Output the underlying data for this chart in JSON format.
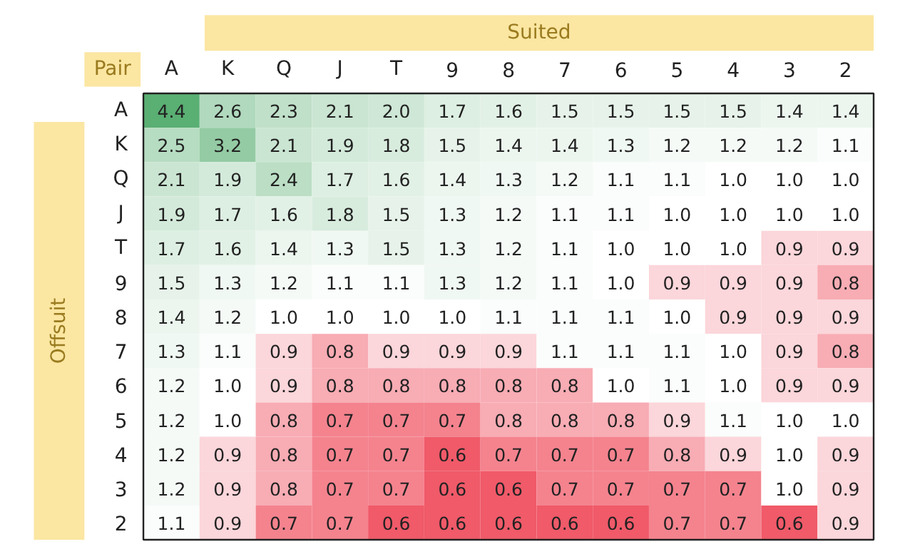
{
  "chart_data": {
    "type": "heatmap",
    "xlabel": "Suited",
    "ylabel": "Offsuit",
    "annotations": [
      "Pair"
    ],
    "data_labels": true,
    "categories": [
      "A",
      "K",
      "Q",
      "J",
      "T",
      "9",
      "8",
      "7",
      "6",
      "5",
      "4",
      "3",
      "2"
    ],
    "y_categories": [
      "A",
      "K",
      "Q",
      "J",
      "T",
      "9",
      "8",
      "7",
      "6",
      "5",
      "4",
      "3",
      "2"
    ],
    "cells": [
      [
        4.4,
        2.6,
        2.3,
        2.1,
        2.0,
        1.7,
        1.6,
        1.5,
        1.5,
        1.5,
        1.5,
        1.4,
        1.4
      ],
      [
        2.5,
        3.2,
        2.1,
        1.9,
        1.8,
        1.5,
        1.4,
        1.4,
        1.3,
        1.2,
        1.2,
        1.2,
        1.1
      ],
      [
        2.1,
        1.9,
        2.4,
        1.7,
        1.6,
        1.4,
        1.3,
        1.2,
        1.1,
        1.1,
        1.0,
        1.0,
        1.0
      ],
      [
        1.9,
        1.7,
        1.6,
        1.8,
        1.5,
        1.3,
        1.2,
        1.1,
        1.1,
        1.0,
        1.0,
        1.0,
        1.0
      ],
      [
        1.7,
        1.6,
        1.4,
        1.3,
        1.5,
        1.3,
        1.2,
        1.1,
        1.0,
        1.0,
        1.0,
        0.9,
        0.9
      ],
      [
        1.5,
        1.3,
        1.2,
        1.1,
        1.1,
        1.3,
        1.2,
        1.1,
        1.0,
        0.9,
        0.9,
        0.9,
        0.8
      ],
      [
        1.4,
        1.2,
        1.0,
        1.0,
        1.0,
        1.0,
        1.1,
        1.1,
        1.1,
        1.0,
        0.9,
        0.9,
        0.9
      ],
      [
        1.3,
        1.1,
        0.9,
        0.8,
        0.9,
        0.9,
        0.9,
        1.1,
        1.1,
        1.1,
        1.0,
        0.9,
        0.8
      ],
      [
        1.2,
        1.0,
        0.9,
        0.8,
        0.8,
        0.8,
        0.8,
        0.8,
        1.0,
        1.1,
        1.0,
        0.9,
        0.9
      ],
      [
        1.2,
        1.0,
        0.8,
        0.7,
        0.7,
        0.7,
        0.8,
        0.8,
        0.8,
        0.9,
        1.1,
        1.0,
        1.0
      ],
      [
        1.2,
        0.9,
        0.8,
        0.7,
        0.7,
        0.6,
        0.7,
        0.7,
        0.7,
        0.8,
        0.9,
        1.0,
        0.9
      ],
      [
        1.2,
        0.9,
        0.8,
        0.7,
        0.7,
        0.6,
        0.6,
        0.7,
        0.7,
        0.7,
        0.7,
        1.0,
        0.9
      ],
      [
        1.1,
        0.9,
        0.7,
        0.7,
        0.6,
        0.6,
        0.6,
        0.6,
        0.6,
        0.7,
        0.7,
        0.6,
        0.9
      ]
    ],
    "cell_labels": [
      [
        "4.4",
        "2.6",
        "2.3",
        "2.1",
        "2.0",
        "1.7",
        "1.6",
        "1.5",
        "1.5",
        "1.5",
        "1.5",
        "1.4",
        "1.4"
      ],
      [
        "2.5",
        "3.2",
        "2.1",
        "1.9",
        "1.8",
        "1.5",
        "1.4",
        "1.4",
        "1.3",
        "1.2",
        "1.2",
        "1.2",
        "1.1"
      ],
      [
        "2.1",
        "1.9",
        "2.4",
        "1.7",
        "1.6",
        "1.4",
        "1.3",
        "1.2",
        "1.1",
        "1.1",
        "1.0",
        "1.0",
        "1.0"
      ],
      [
        "1.9",
        "1.7",
        "1.6",
        "1.8",
        "1.5",
        "1.3",
        "1.2",
        "1.1",
        "1.1",
        "1.0",
        "1.0",
        "1.0",
        "1.0"
      ],
      [
        "1.7",
        "1.6",
        "1.4",
        "1.3",
        "1.5",
        "1.3",
        "1.2",
        "1.1",
        "1.0",
        "1.0",
        "1.0",
        "0.9",
        "0.9"
      ],
      [
        "1.5",
        "1.3",
        "1.2",
        "1.1",
        "1.1",
        "1.3",
        "1.2",
        "1.1",
        "1.0",
        "0.9",
        "0.9",
        "0.9",
        "0.8"
      ],
      [
        "1.4",
        "1.2",
        "1.0",
        "1.0",
        "1.0",
        "1.0",
        "1.1",
        "1.1",
        "1.1",
        "1.0",
        "0.9",
        "0.9",
        "0.9"
      ],
      [
        "1.3",
        "1.1",
        "0.9",
        "0.8",
        "0.9",
        "0.9",
        "0.9",
        "1.1",
        "1.1",
        "1.1",
        "1.0",
        "0.9",
        "0.8"
      ],
      [
        "1.2",
        "1.0",
        "0.9",
        "0.8",
        "0.8",
        "0.8",
        "0.8",
        "0.8",
        "1.0",
        "1.1",
        "1.0",
        "0.9",
        "0.9"
      ],
      [
        "1.2",
        "1.0",
        "0.8",
        "0.7",
        "0.7",
        "0.7",
        "0.8",
        "0.8",
        "0.8",
        "0.9",
        "1.1",
        "1.0",
        "1.0"
      ],
      [
        "1.2",
        "0.9",
        "0.8",
        "0.7",
        "0.7",
        "0.6",
        "0.7",
        "0.7",
        "0.7",
        "0.8",
        "0.9",
        "1.0",
        "0.9"
      ],
      [
        "1.2",
        "0.9",
        "0.8",
        "0.7",
        "0.7",
        "0.6",
        "0.6",
        "0.7",
        "0.7",
        "0.7",
        "0.7",
        "1.0",
        "0.9"
      ],
      [
        "1.1",
        "0.9",
        "0.7",
        "0.7",
        "0.6",
        "0.6",
        "0.6",
        "0.6",
        "0.6",
        "0.7",
        "0.7",
        "0.6",
        "0.9"
      ]
    ]
  }
}
